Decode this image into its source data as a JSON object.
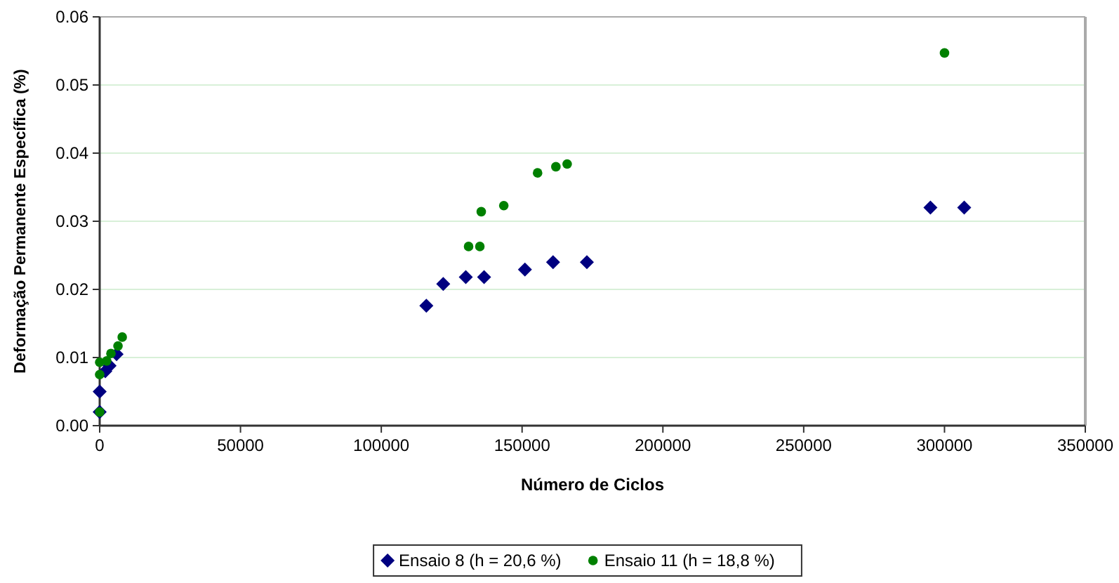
{
  "chart_data": {
    "type": "scatter",
    "xlabel": "Número de Ciclos",
    "ylabel": "Deformação Permanente Específica (%)",
    "xlim": [
      0,
      350000
    ],
    "xticks": [
      0,
      50000,
      100000,
      150000,
      200000,
      250000,
      300000,
      350000
    ],
    "ylim": [
      0,
      0.06
    ],
    "yticks": [
      {
        "value": 0,
        "label": "0.00"
      },
      {
        "value": 0.01,
        "label": "0.01"
      },
      {
        "value": 0.02,
        "label": "0.02"
      },
      {
        "value": 0.03,
        "label": "0.03"
      },
      {
        "value": 0.04,
        "label": "0.04"
      },
      {
        "value": 0.05,
        "label": "0.05"
      },
      {
        "value": 0.06,
        "label": "0.06"
      }
    ],
    "grid": "y",
    "legend": "bottom",
    "series": [
      {
        "name": "Ensaio 8 (h = 20,6 %)",
        "color": "#000080",
        "marker": "diamond",
        "x": [
          0,
          0,
          2000,
          3500,
          6000,
          116000,
          122000,
          130000,
          136500,
          151000,
          161000,
          173000,
          295000,
          307000
        ],
        "values": [
          0.002,
          0.005,
          0.008,
          0.0088,
          0.0105,
          0.0176,
          0.0208,
          0.0218,
          0.0218,
          0.0229,
          0.024,
          0.024,
          0.032,
          0.032
        ]
      },
      {
        "name": "Ensaio 11 (h = 18,8 %)",
        "color": "#008000",
        "marker": "circle",
        "x": [
          0,
          0,
          0,
          2500,
          4000,
          6500,
          8000,
          131000,
          135000,
          135500,
          143500,
          155500,
          162000,
          166000,
          300000
        ],
        "values": [
          0.002,
          0.0075,
          0.0093,
          0.0095,
          0.0106,
          0.0117,
          0.013,
          0.0263,
          0.0263,
          0.0314,
          0.0323,
          0.0371,
          0.038,
          0.0384,
          0.0547
        ]
      }
    ]
  }
}
